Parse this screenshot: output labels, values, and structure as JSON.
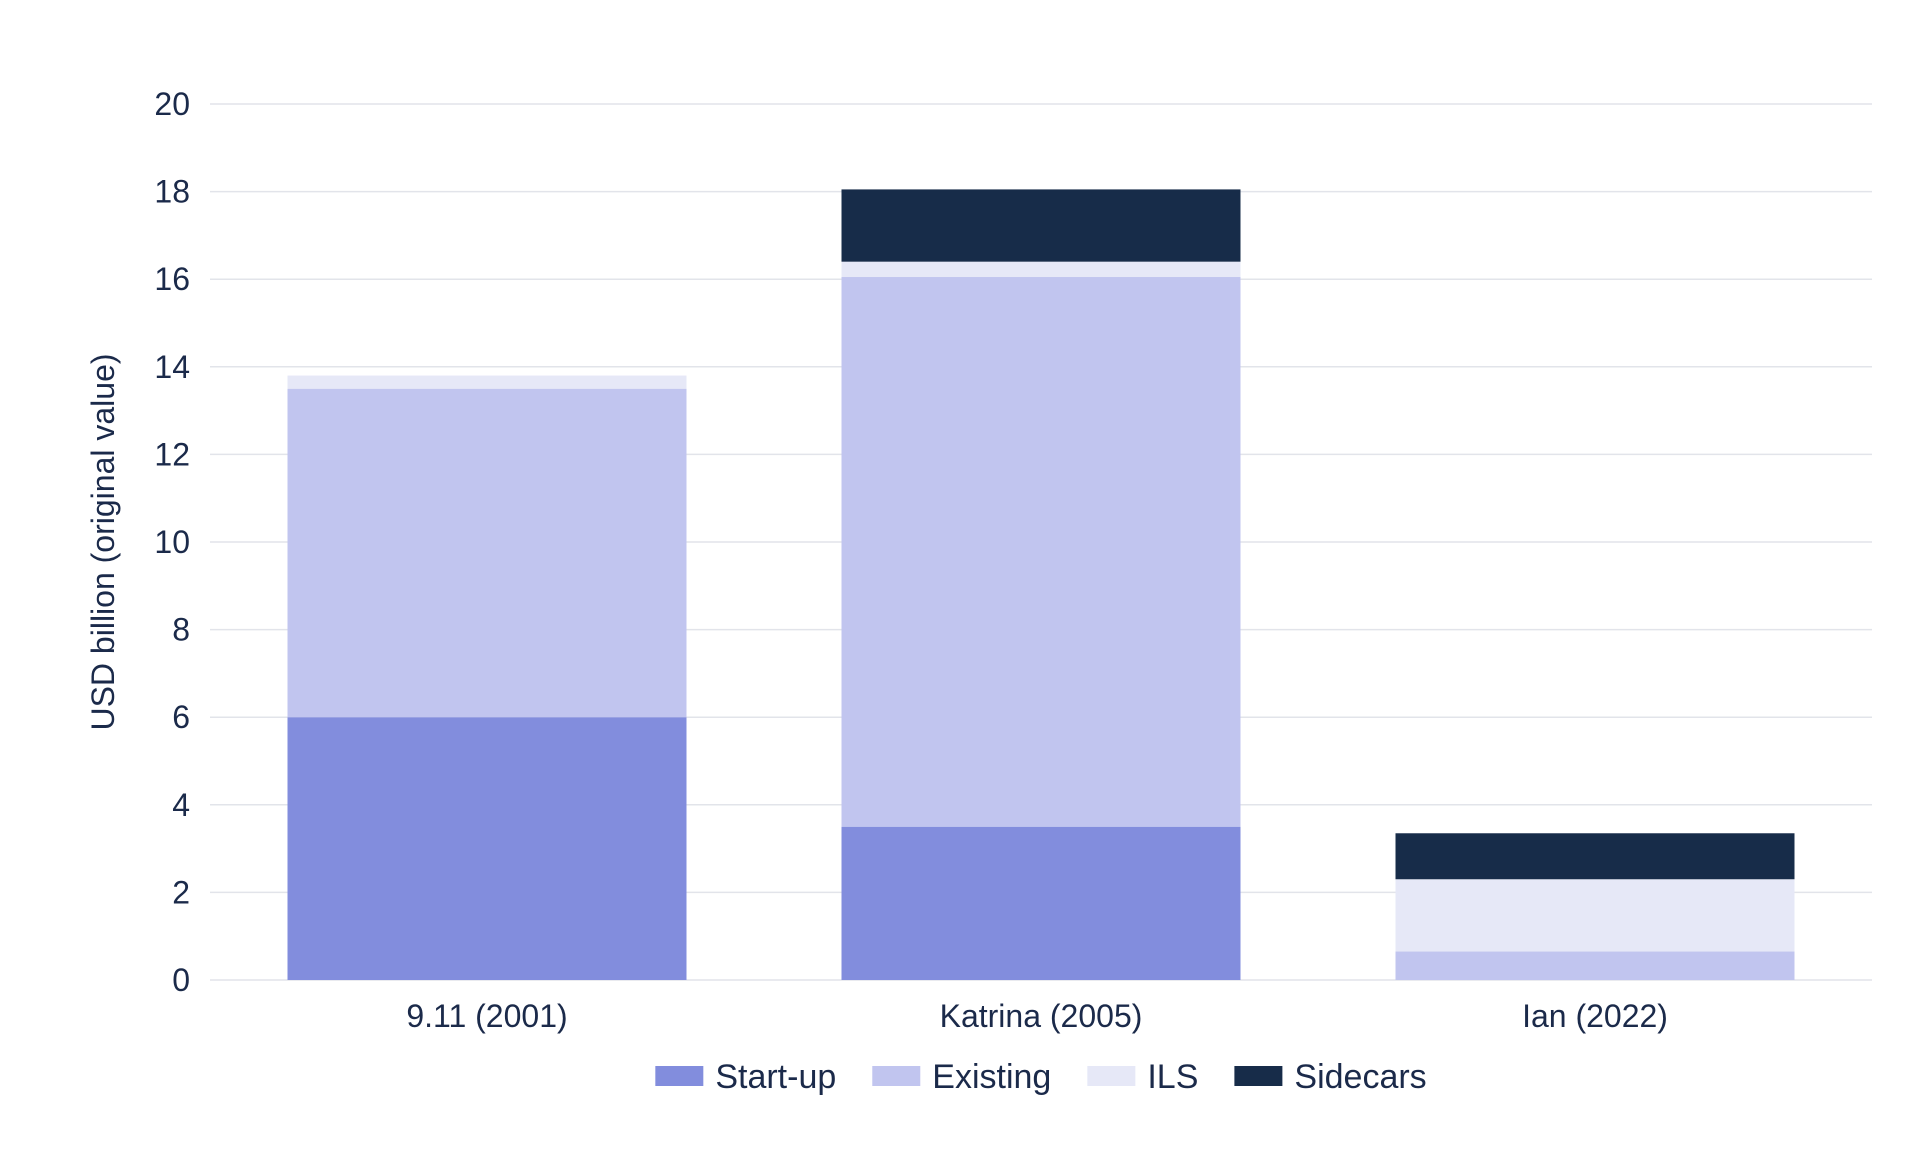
{
  "chart_data": {
    "type": "bar",
    "stacked": true,
    "title": "",
    "xlabel": "",
    "ylabel": "USD billion (original value)",
    "ylim": [
      0,
      20
    ],
    "yticks": [
      0,
      2,
      4,
      6,
      8,
      10,
      12,
      14,
      16,
      18,
      20
    ],
    "grid": true,
    "legend_position": "bottom",
    "categories": [
      "9.11 (2001)",
      "Katrina (2005)",
      "Ian (2022)"
    ],
    "series": [
      {
        "name": "Start-up",
        "color": "#828ddd",
        "values": [
          6.0,
          3.5,
          0.0
        ]
      },
      {
        "name": "Existing",
        "color": "#c1c5ef",
        "values": [
          7.5,
          12.55,
          0.65
        ]
      },
      {
        "name": "ILS",
        "color": "#e6e8f7",
        "values": [
          0.3,
          0.35,
          1.65
        ]
      },
      {
        "name": "Sidecars",
        "color": "#172c49",
        "values": [
          0.0,
          1.65,
          1.05
        ]
      }
    ]
  }
}
